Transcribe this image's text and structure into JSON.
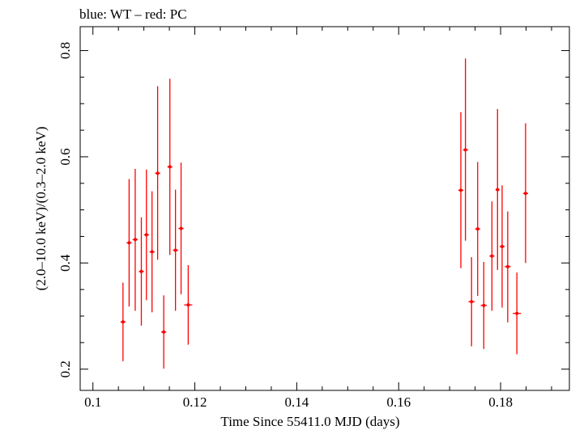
{
  "chart_data": {
    "type": "scatter",
    "title": "blue: WT – red: PC",
    "xlabel": "Time Since 55411.0 MJD (days)",
    "ylabel": "(2.0–10.0 keV)/(0.3–2.0 keV)",
    "xlim": [
      0.0975,
      0.1935
    ],
    "ylim": [
      0.16,
      0.845
    ],
    "x_ticks": [
      0.1,
      0.12,
      0.14,
      0.16,
      0.18
    ],
    "x_tick_labels": [
      "0.1",
      "0.12",
      "0.14",
      "0.16",
      "0.18"
    ],
    "y_ticks": [
      0.2,
      0.4,
      0.6,
      0.8
    ],
    "y_tick_labels": [
      "0.2",
      "0.4",
      "0.6",
      "0.8"
    ],
    "grid": false,
    "series": [
      {
        "name": "PC",
        "color": "#ff0000",
        "points": [
          {
            "x": 0.1059,
            "xerr": 0.0005,
            "y": 0.289,
            "ylo": 0.215,
            "yhi": 0.363
          },
          {
            "x": 0.1071,
            "xerr": 0.0005,
            "y": 0.438,
            "ylo": 0.318,
            "yhi": 0.558
          },
          {
            "x": 0.1083,
            "xerr": 0.0005,
            "y": 0.444,
            "ylo": 0.31,
            "yhi": 0.577
          },
          {
            "x": 0.1095,
            "xerr": 0.0005,
            "y": 0.384,
            "ylo": 0.282,
            "yhi": 0.486
          },
          {
            "x": 0.1105,
            "xerr": 0.0005,
            "y": 0.453,
            "ylo": 0.33,
            "yhi": 0.576
          },
          {
            "x": 0.1116,
            "xerr": 0.0005,
            "y": 0.421,
            "ylo": 0.307,
            "yhi": 0.535
          },
          {
            "x": 0.1127,
            "xerr": 0.0005,
            "y": 0.569,
            "ylo": 0.406,
            "yhi": 0.733
          },
          {
            "x": 0.1139,
            "xerr": 0.0005,
            "y": 0.27,
            "ylo": 0.201,
            "yhi": 0.339
          },
          {
            "x": 0.1151,
            "xerr": 0.0005,
            "y": 0.581,
            "ylo": 0.415,
            "yhi": 0.747
          },
          {
            "x": 0.1162,
            "xerr": 0.0005,
            "y": 0.424,
            "ylo": 0.31,
            "yhi": 0.538
          },
          {
            "x": 0.1173,
            "xerr": 0.0005,
            "y": 0.465,
            "ylo": 0.341,
            "yhi": 0.589
          },
          {
            "x": 0.1187,
            "xerr": 0.0008,
            "y": 0.321,
            "ylo": 0.246,
            "yhi": 0.396
          },
          {
            "x": 0.1722,
            "xerr": 0.0005,
            "y": 0.537,
            "ylo": 0.39,
            "yhi": 0.684
          },
          {
            "x": 0.1731,
            "xerr": 0.0005,
            "y": 0.613,
            "ylo": 0.442,
            "yhi": 0.785
          },
          {
            "x": 0.1743,
            "xerr": 0.0006,
            "y": 0.327,
            "ylo": 0.243,
            "yhi": 0.411
          },
          {
            "x": 0.1755,
            "xerr": 0.0005,
            "y": 0.464,
            "ylo": 0.338,
            "yhi": 0.59
          },
          {
            "x": 0.1767,
            "xerr": 0.0006,
            "y": 0.32,
            "ylo": 0.238,
            "yhi": 0.402
          },
          {
            "x": 0.1783,
            "xerr": 0.0005,
            "y": 0.413,
            "ylo": 0.31,
            "yhi": 0.516
          },
          {
            "x": 0.1794,
            "xerr": 0.0004,
            "y": 0.538,
            "ylo": 0.387,
            "yhi": 0.69
          },
          {
            "x": 0.1803,
            "xerr": 0.0005,
            "y": 0.431,
            "ylo": 0.316,
            "yhi": 0.546
          },
          {
            "x": 0.1814,
            "xerr": 0.0006,
            "y": 0.393,
            "ylo": 0.288,
            "yhi": 0.497
          },
          {
            "x": 0.1832,
            "xerr": 0.0008,
            "y": 0.305,
            "ylo": 0.228,
            "yhi": 0.382
          },
          {
            "x": 0.1849,
            "xerr": 0.0005,
            "y": 0.531,
            "ylo": 0.4,
            "yhi": 0.663
          }
        ]
      }
    ]
  }
}
